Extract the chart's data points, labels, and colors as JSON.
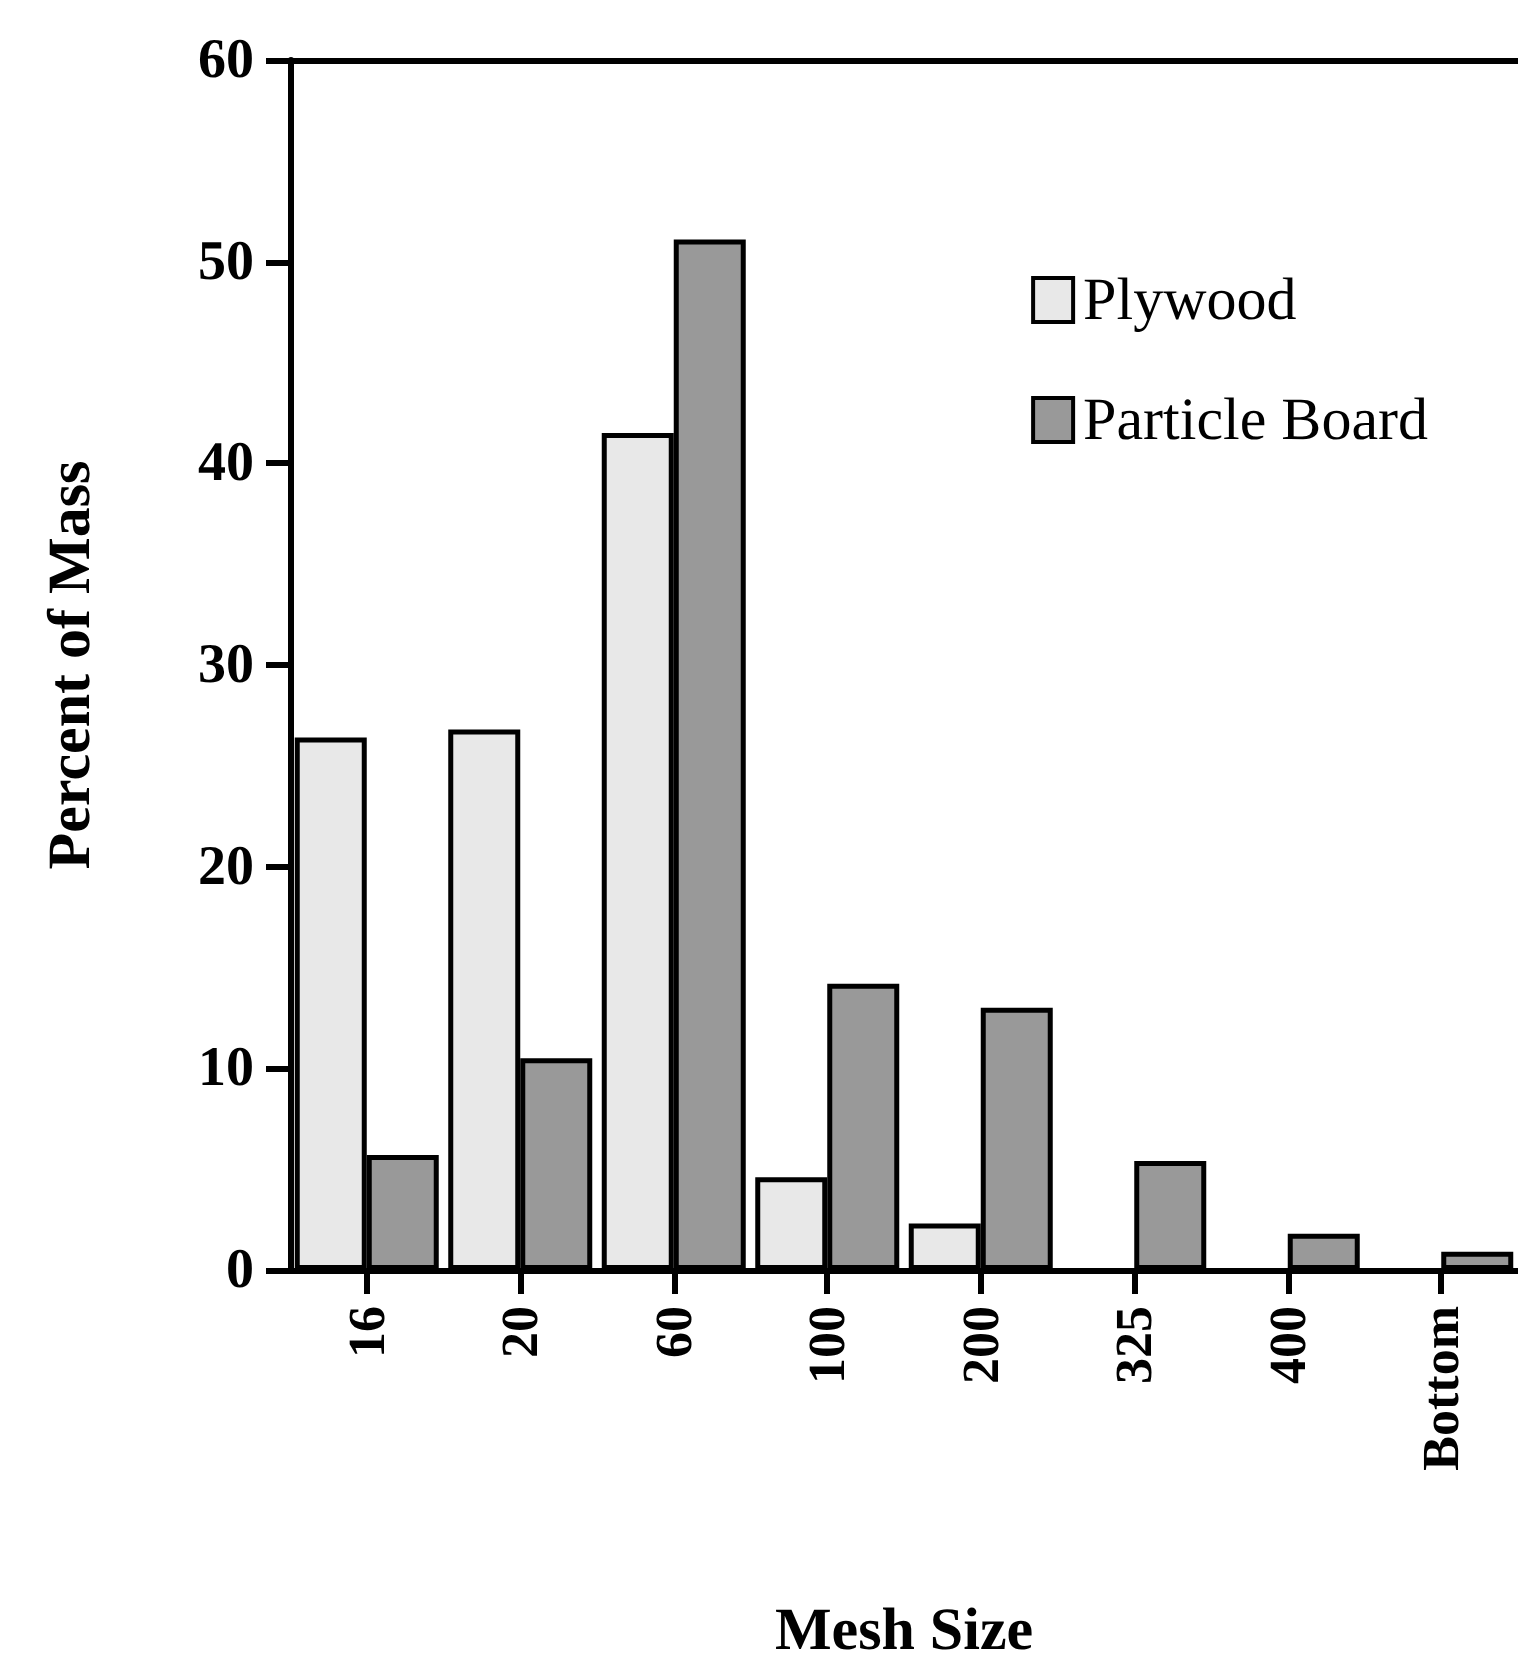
{
  "chart_data": {
    "type": "bar",
    "xlabel": "Mesh Size",
    "ylabel": "Percent of Mass",
    "categories": [
      "16",
      "20",
      "60",
      "100",
      "200",
      "325",
      "400",
      "Bottom"
    ],
    "series": [
      {
        "name": "Plywood",
        "color": "#e8e8e8",
        "values": [
          26.4,
          26.8,
          41.5,
          4.6,
          2.3,
          null,
          null,
          null
        ]
      },
      {
        "name": "Particle Board",
        "color": "#999999",
        "values": [
          5.7,
          10.5,
          51.1,
          14.2,
          13.0,
          5.4,
          1.8,
          0.9
        ]
      }
    ],
    "ylim": [
      0,
      60
    ],
    "yticks": [
      0,
      10,
      20,
      30,
      40,
      50,
      60
    ],
    "grid": false,
    "legend": "top right"
  }
}
